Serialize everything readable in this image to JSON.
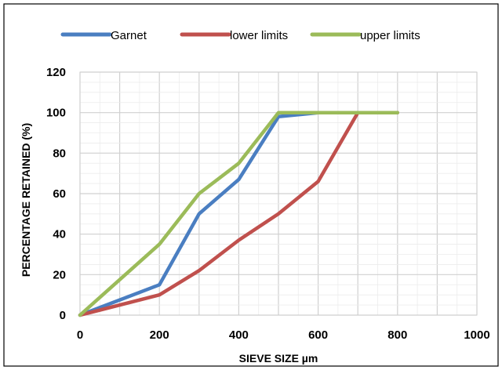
{
  "chart_data": {
    "type": "line",
    "title": "",
    "xlabel": "SIEVE SIZE µm",
    "ylabel": "PERCENTAGE RETAINED (%)",
    "xlim": [
      0,
      1000
    ],
    "ylim": [
      0,
      120
    ],
    "x_ticks": [
      0,
      200,
      400,
      600,
      800,
      1000
    ],
    "y_ticks": [
      0,
      20,
      40,
      60,
      80,
      100,
      120
    ],
    "grid": true,
    "legend_position": "top",
    "series": [
      {
        "name": "Garnet",
        "color": "#4a7ec1",
        "x": [
          0,
          200,
          300,
          400,
          500,
          600,
          800
        ],
        "y": [
          0,
          15,
          50,
          67,
          98,
          100,
          100
        ]
      },
      {
        "name": "lower limits",
        "color": "#c0504d",
        "x": [
          0,
          200,
          300,
          400,
          500,
          600,
          700,
          800
        ],
        "y": [
          0,
          10,
          22,
          37,
          50,
          66,
          100,
          100
        ]
      },
      {
        "name": "upper limits",
        "color": "#9bbb59",
        "x": [
          0,
          200,
          300,
          400,
          500,
          600,
          800
        ],
        "y": [
          0,
          35,
          60,
          75,
          100,
          100,
          100
        ]
      }
    ]
  }
}
